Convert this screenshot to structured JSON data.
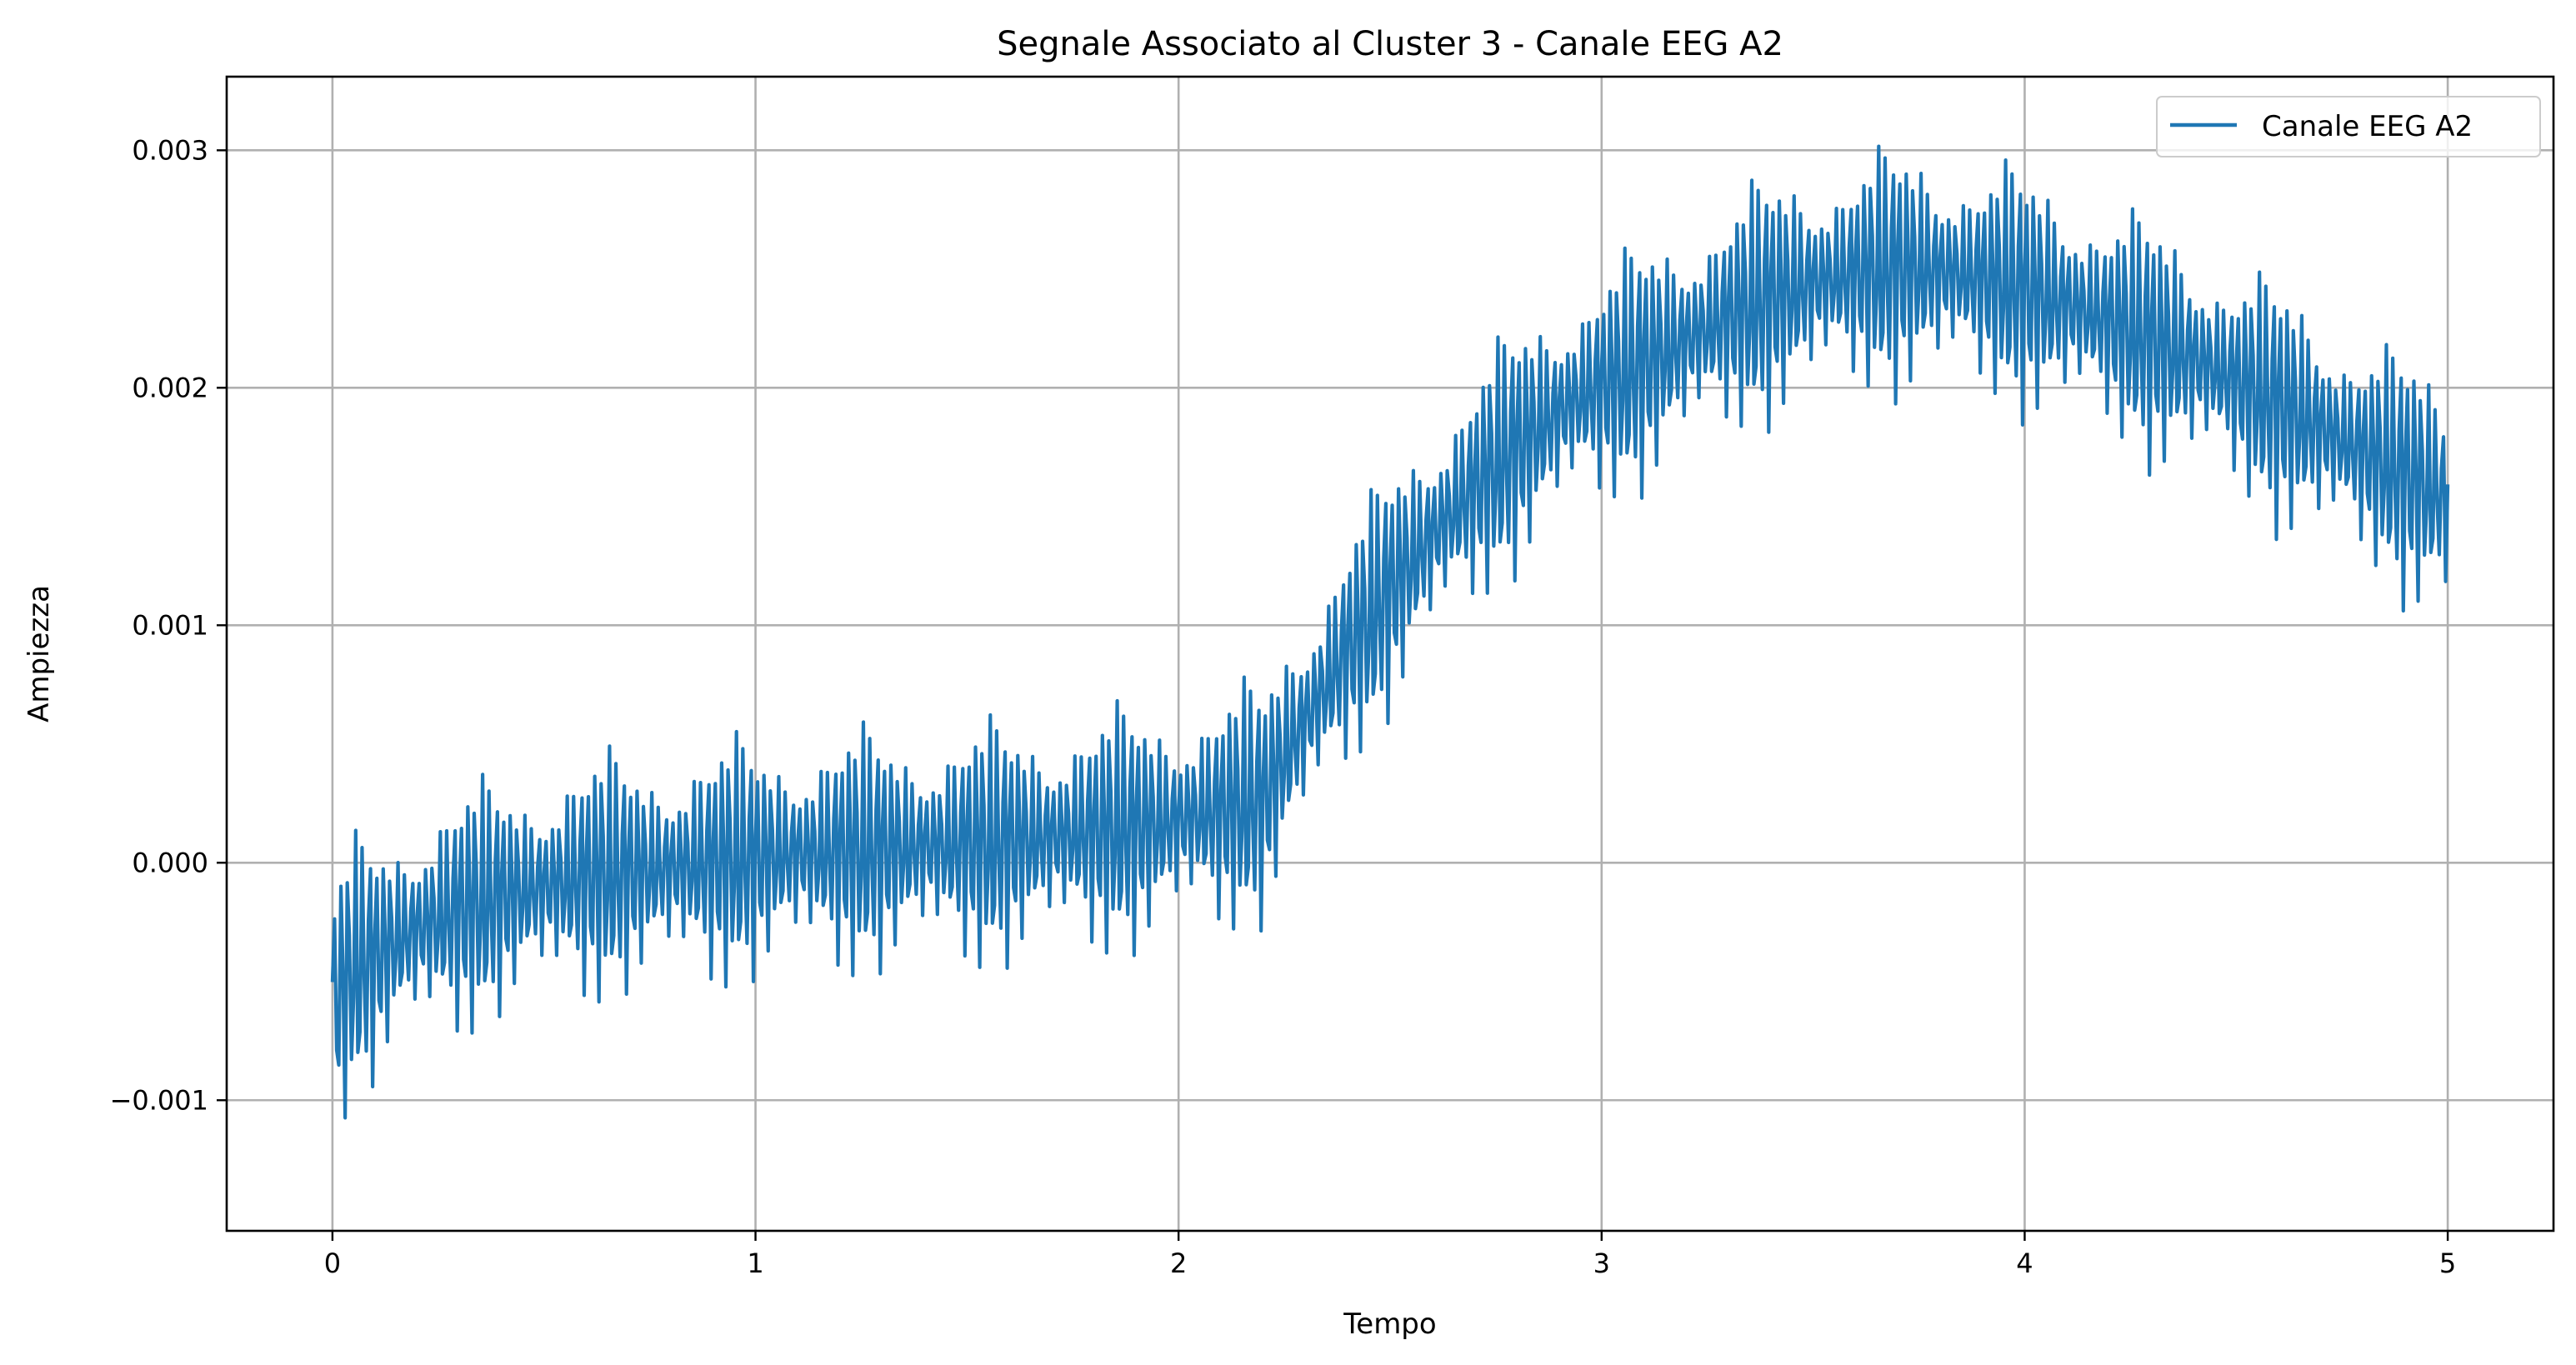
{
  "chart_data": {
    "type": "line",
    "title": "Segnale Associato al Cluster 3 - Canale EEG A2",
    "xlabel": "Tempo",
    "ylabel": "Ampiezza",
    "xlim": [
      -0.25,
      5.25
    ],
    "ylim": [
      -0.00155,
      0.00331
    ],
    "xticks": [
      0,
      1,
      2,
      3,
      4,
      5
    ],
    "xtick_labels": [
      "0",
      "1",
      "2",
      "3",
      "4",
      "5"
    ],
    "yticks": [
      -0.001,
      0.0,
      0.001,
      0.002,
      0.003
    ],
    "ytick_labels": [
      "−0.001",
      "0.000",
      "0.001",
      "0.002",
      "0.003"
    ],
    "grid": true,
    "legend_position": "top-right",
    "series": [
      {
        "name": "Canale EEG A2",
        "color": "#1f77b4",
        "x": [
          0.0,
          0.05,
          0.1,
          0.15,
          0.2,
          0.25,
          0.3,
          0.35,
          0.4,
          0.45,
          0.5,
          0.55,
          0.6,
          0.65,
          0.7,
          0.75,
          0.8,
          0.85,
          0.9,
          0.95,
          1.0,
          1.05,
          1.1,
          1.15,
          1.2,
          1.25,
          1.3,
          1.35,
          1.4,
          1.45,
          1.5,
          1.55,
          1.6,
          1.65,
          1.7,
          1.75,
          1.8,
          1.85,
          1.9,
          1.95,
          2.0,
          2.05,
          2.1,
          2.15,
          2.2,
          2.25,
          2.3,
          2.35,
          2.4,
          2.45,
          2.5,
          2.55,
          2.6,
          2.65,
          2.7,
          2.75,
          2.8,
          2.85,
          2.9,
          2.95,
          3.0,
          3.05,
          3.1,
          3.15,
          3.2,
          3.25,
          3.3,
          3.35,
          3.4,
          3.45,
          3.5,
          3.55,
          3.6,
          3.65,
          3.7,
          3.75,
          3.8,
          3.85,
          3.9,
          3.95,
          4.0,
          4.05,
          4.1,
          4.15,
          4.2,
          4.25,
          4.3,
          4.35,
          4.4,
          4.45,
          4.5,
          4.55,
          4.6,
          4.65,
          4.7,
          4.75,
          4.8,
          4.85,
          4.9,
          4.95,
          5.0
        ],
        "y_center": [
          -0.0006,
          -0.00045,
          -0.0004,
          -0.00033,
          -0.00028,
          -0.00024,
          -0.0002,
          -0.00017,
          -0.00014,
          -0.00012,
          -0.0001,
          -8e-05,
          -6e-05,
          -5e-05,
          -4e-05,
          -3e-05,
          -2e-05,
          -1e-05,
          0.0,
          1e-05,
          2e-05,
          3e-05,
          4e-05,
          4e-05,
          5e-05,
          5e-05,
          6e-05,
          6e-05,
          7e-05,
          7e-05,
          8e-05,
          8e-05,
          9e-05,
          0.0001,
          0.00011,
          0.00012,
          0.00013,
          0.00014,
          0.00015,
          0.00016,
          0.00018,
          0.0002,
          0.00022,
          0.00024,
          0.00026,
          0.00045,
          0.0006,
          0.00075,
          0.0009,
          0.00102,
          0.00115,
          0.00127,
          0.00138,
          0.00148,
          0.00158,
          0.00167,
          0.00175,
          0.00183,
          0.0019,
          0.00196,
          0.00201,
          0.00205,
          0.0021,
          0.00215,
          0.0022,
          0.00225,
          0.0023,
          0.00234,
          0.00238,
          0.00241,
          0.00244,
          0.00246,
          0.00248,
          0.00249,
          0.0025,
          0.0025,
          0.00249,
          0.00248,
          0.00246,
          0.00244,
          0.00241,
          0.00238,
          0.00235,
          0.00232,
          0.00228,
          0.00224,
          0.0022,
          0.00216,
          0.00212,
          0.00208,
          0.00203,
          0.00198,
          0.00193,
          0.00188,
          0.00183,
          0.00178,
          0.00173,
          0.00168,
          0.00163,
          0.00158,
          0.00153
        ],
        "y_envelope_half_width": [
          0.0006,
          0.00065,
          0.00065,
          0.00063,
          0.0006,
          0.0006,
          0.0006,
          0.0006,
          0.0006,
          0.0006,
          0.0006,
          0.0006,
          0.0006,
          0.0006,
          0.0006,
          0.0006,
          0.0006,
          0.0006,
          0.0006,
          0.0006,
          0.0006,
          0.0006,
          0.0006,
          0.0006,
          0.0006,
          0.0006,
          0.0006,
          0.0006,
          0.0006,
          0.0006,
          0.0006,
          0.0006,
          0.0006,
          0.0006,
          0.0006,
          0.0006,
          0.0006,
          0.0006,
          0.0006,
          0.0006,
          0.0006,
          0.0006,
          0.0006,
          0.0006,
          0.0006,
          0.0006,
          0.0006,
          0.0006,
          0.0006,
          0.0006,
          0.0006,
          0.0006,
          0.0006,
          0.0006,
          0.0006,
          0.0006,
          0.0006,
          0.0006,
          0.0006,
          0.0006,
          0.0006,
          0.0006,
          0.0006,
          0.0006,
          0.0006,
          0.0006,
          0.0006,
          0.0006,
          0.0006,
          0.0006,
          0.0006,
          0.0006,
          0.0006,
          0.0006,
          0.0006,
          0.0006,
          0.0006,
          0.0006,
          0.0006,
          0.0006,
          0.0006,
          0.0006,
          0.0006,
          0.0006,
          0.0006,
          0.0006,
          0.0006,
          0.0006,
          0.0006,
          0.0006,
          0.0006,
          0.0006,
          0.0006,
          0.0006,
          0.0006,
          0.0006,
          0.0006,
          0.0006,
          0.0006,
          0.0006,
          0.0006
        ],
        "oscillation_frequency": 60
      }
    ]
  }
}
